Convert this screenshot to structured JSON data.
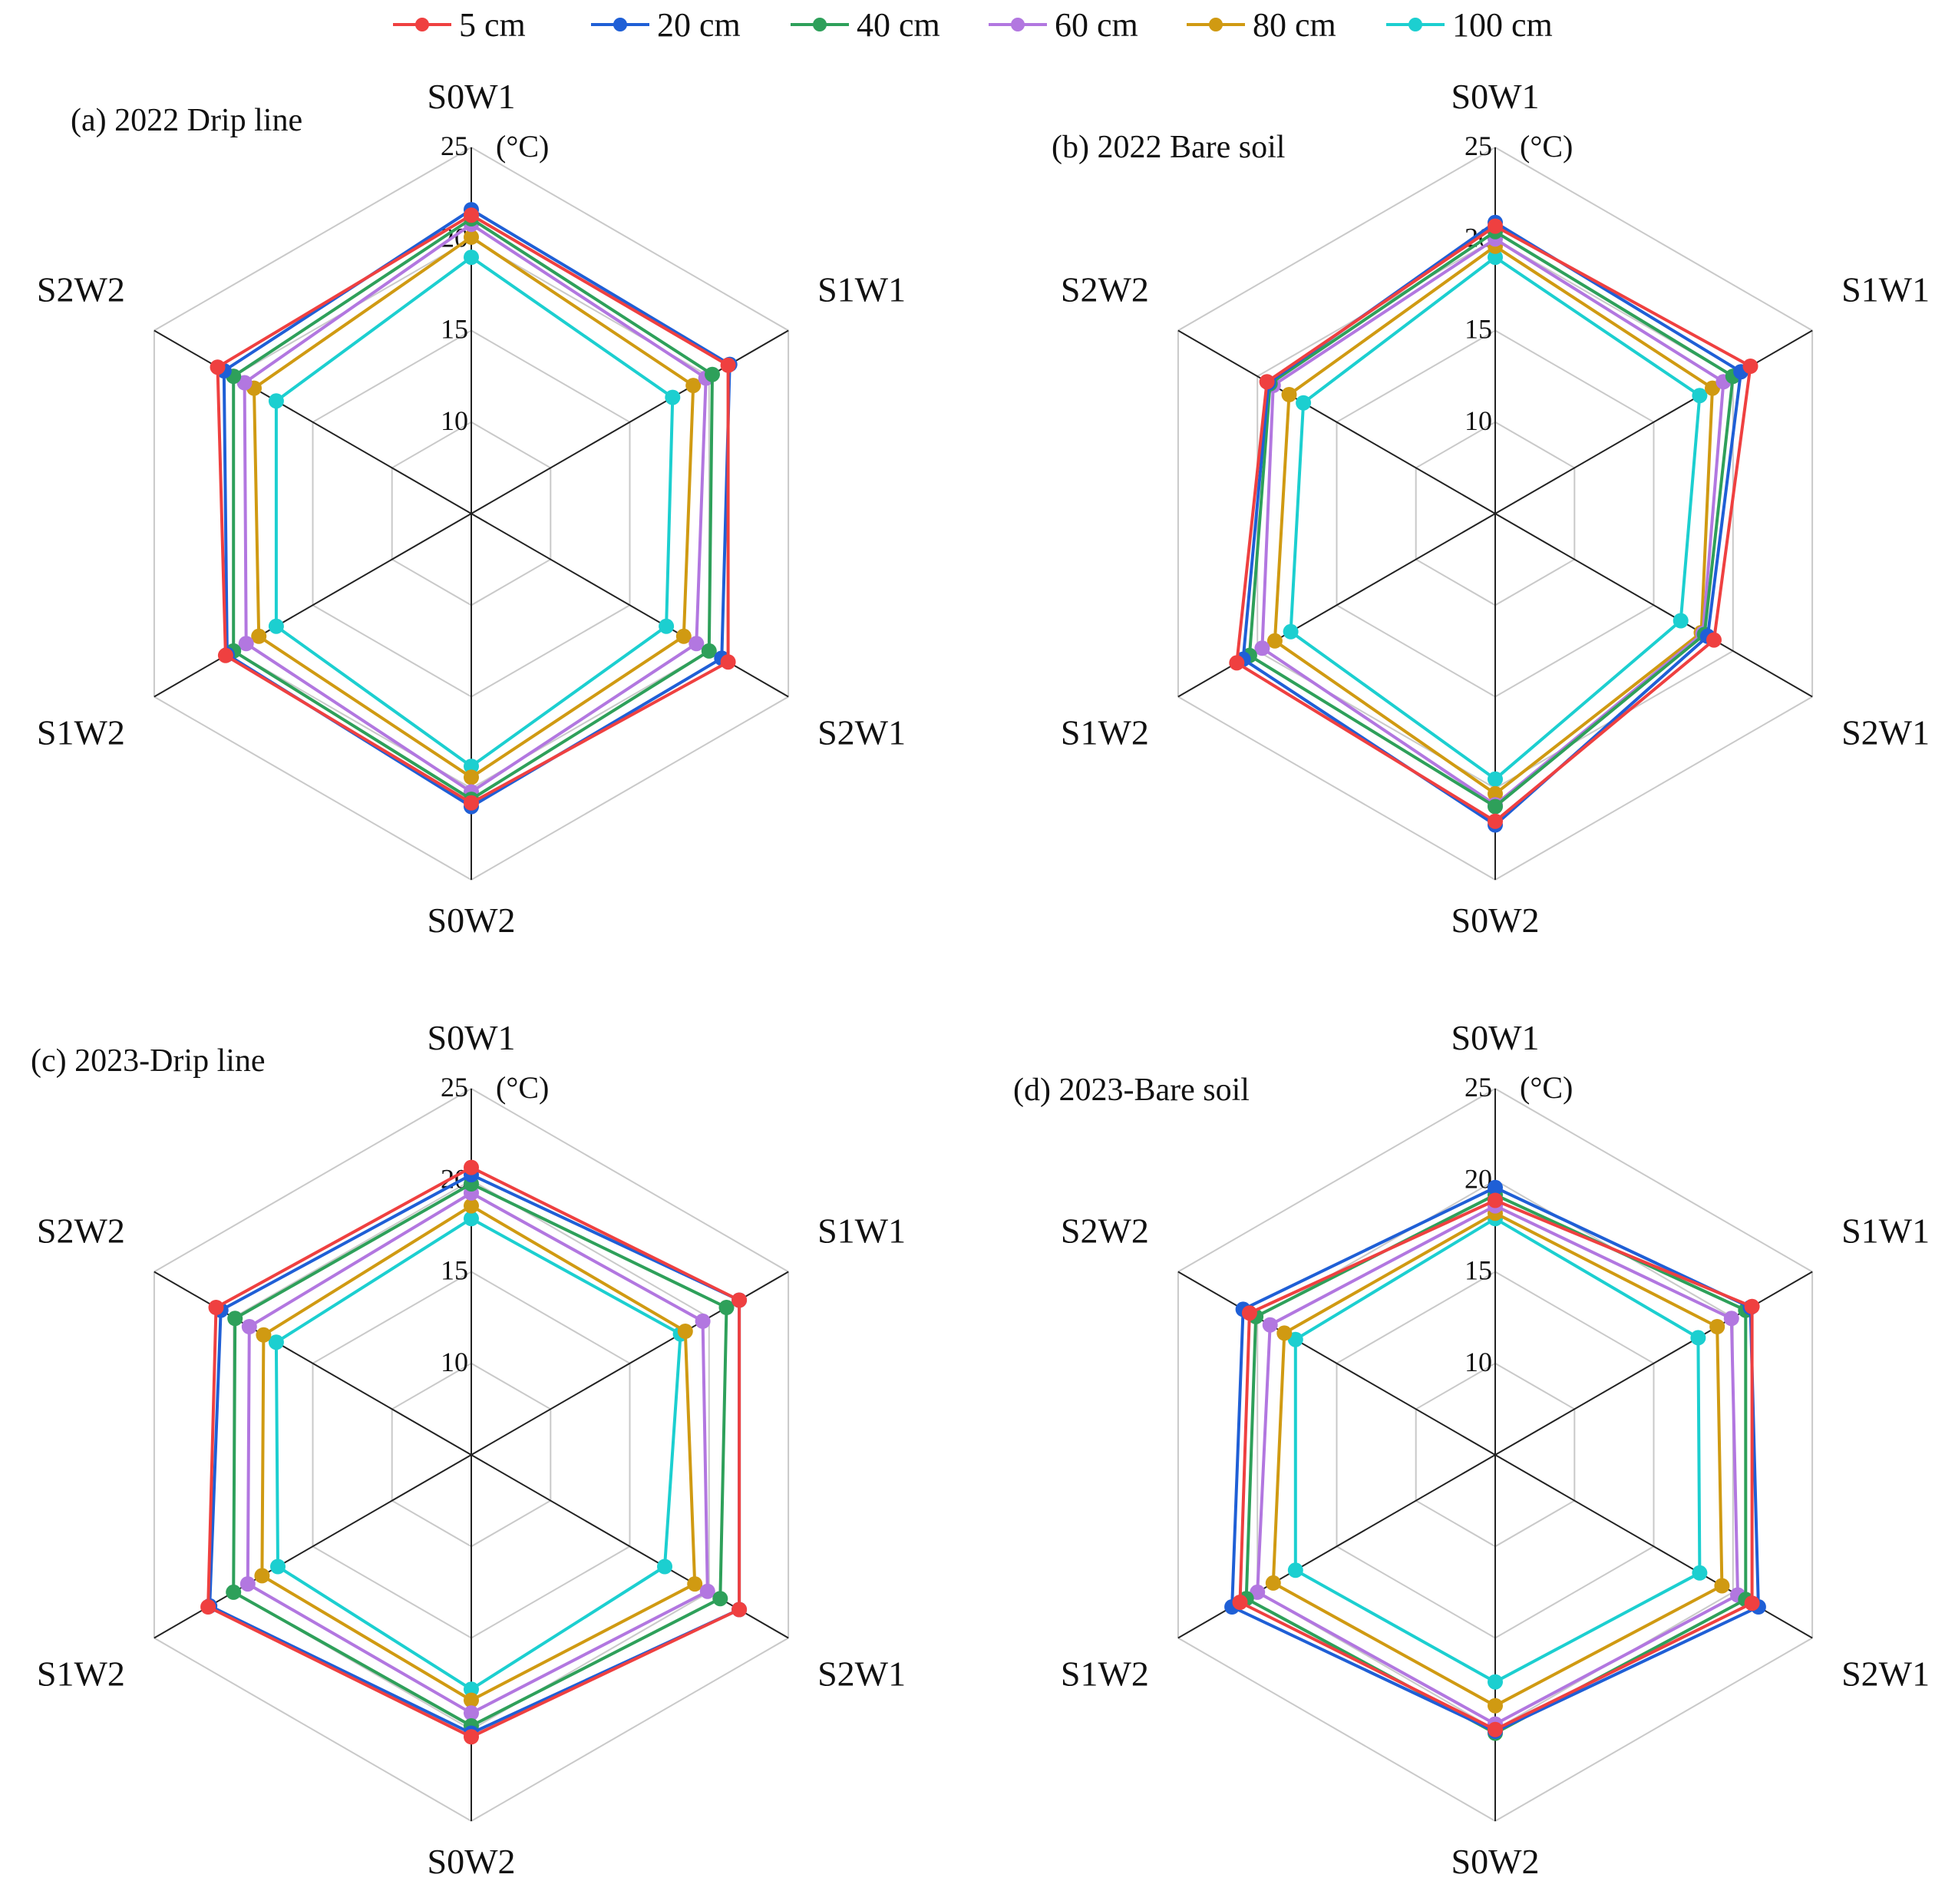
{
  "chart_data": {
    "type": "radar",
    "legend": {
      "placement": "top-center",
      "entries": [
        {
          "name": "5 cm",
          "color": "#ef4040"
        },
        {
          "name": "20 cm",
          "color": "#1f5fd6"
        },
        {
          "name": "40 cm",
          "color": "#2ea05a"
        },
        {
          "name": "60 cm",
          "color": "#b277e0"
        },
        {
          "name": "80 cm",
          "color": "#d09a12"
        },
        {
          "name": "100 cm",
          "color": "#1ccfd0"
        }
      ]
    },
    "unit": "(°C)",
    "rmin": 5,
    "rmax": 25,
    "ticks": [
      10,
      15,
      20,
      25
    ],
    "axes": [
      "S0W1",
      "S1W1",
      "S2W1",
      "S0W2",
      "S1W2",
      "S2W2"
    ],
    "panels": [
      {
        "title": "(a) 2022 Drip line",
        "series": [
          {
            "name": "5 cm",
            "values": [
              21.3,
              21.2,
              21.2,
              20.8,
              20.5,
              21.0
            ]
          },
          {
            "name": "20 cm",
            "values": [
              21.6,
              21.3,
              20.8,
              21.0,
              20.4,
              20.6
            ]
          },
          {
            "name": "40 cm",
            "values": [
              21.1,
              20.2,
              20.0,
              20.6,
              20.0,
              20.0
            ]
          },
          {
            "name": "60 cm",
            "values": [
              20.8,
              19.8,
              19.2,
              20.2,
              19.2,
              19.3
            ]
          },
          {
            "name": "80 cm",
            "values": [
              20.1,
              19.0,
              18.4,
              19.4,
              18.4,
              18.7
            ]
          },
          {
            "name": "100 cm",
            "values": [
              19.0,
              17.7,
              17.3,
              18.8,
              17.3,
              17.3
            ]
          }
        ]
      },
      {
        "title": "(b) 2022 Bare soil",
        "series": [
          {
            "name": "5 cm",
            "values": [
              20.7,
              21.1,
              18.8,
              21.8,
              21.3,
              19.4
            ]
          },
          {
            "name": "20 cm",
            "values": [
              20.9,
              20.5,
              18.4,
              22.0,
              20.9,
              19.3
            ]
          },
          {
            "name": "40 cm",
            "values": [
              20.4,
              20.0,
              18.2,
              21.0,
              20.5,
              19.2
            ]
          },
          {
            "name": "60 cm",
            "values": [
              20.0,
              19.4,
              18.1,
              20.9,
              19.7,
              19.0
            ]
          },
          {
            "name": "80 cm",
            "values": [
              19.6,
              18.7,
              18.0,
              20.3,
              18.9,
              18.0
            ]
          },
          {
            "name": "100 cm",
            "values": [
              19.0,
              17.9,
              16.7,
              19.5,
              17.9,
              17.1
            ]
          }
        ]
      },
      {
        "title": "(c) 2023-Drip line",
        "series": [
          {
            "name": "5 cm",
            "values": [
              20.7,
              21.9,
              21.9,
              20.4,
              21.6,
              21.1
            ]
          },
          {
            "name": "20 cm",
            "values": [
              20.3,
              21.9,
              21.9,
              20.2,
              21.5,
              20.8
            ]
          },
          {
            "name": "40 cm",
            "values": [
              19.8,
              21.1,
              20.7,
              19.8,
              20.0,
              19.9
            ]
          },
          {
            "name": "60 cm",
            "values": [
              19.3,
              19.6,
              19.9,
              19.1,
              19.1,
              19.0
            ]
          },
          {
            "name": "80 cm",
            "values": [
              18.6,
              18.5,
              19.1,
              18.4,
              18.2,
              18.1
            ]
          },
          {
            "name": "100 cm",
            "values": [
              17.9,
              18.2,
              17.2,
              17.8,
              17.2,
              17.3
            ]
          }
        ]
      },
      {
        "title": "(d) 2023-Bare soil",
        "series": [
          {
            "name": "5 cm",
            "values": [
              18.9,
              21.2,
              21.2,
              20.0,
              21.1,
              20.5
            ]
          },
          {
            "name": "20 cm",
            "values": [
              19.6,
              21.1,
              21.6,
              20.1,
              21.6,
              20.9
            ]
          },
          {
            "name": "40 cm",
            "values": [
              19.2,
              20.8,
              20.8,
              20.2,
              20.7,
              20.1
            ]
          },
          {
            "name": "60 cm",
            "values": [
              18.6,
              19.9,
              20.3,
              19.7,
              20.0,
              19.2
            ]
          },
          {
            "name": "80 cm",
            "values": [
              18.2,
              19.0,
              19.3,
              18.7,
              19.0,
              18.3
            ]
          },
          {
            "name": "100 cm",
            "values": [
              17.9,
              17.8,
              17.9,
              17.4,
              17.6,
              17.6
            ]
          }
        ]
      }
    ]
  }
}
